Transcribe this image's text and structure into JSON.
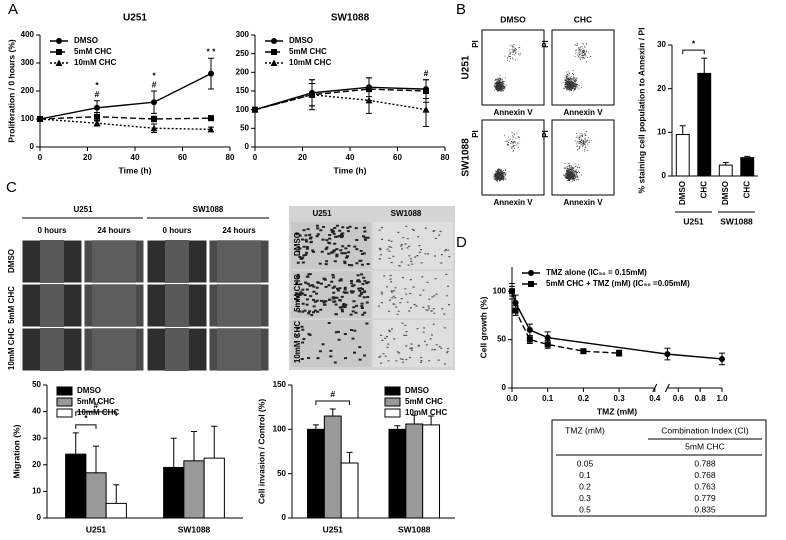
{
  "panel_labels": [
    "A",
    "B",
    "C",
    "D"
  ],
  "chart_data": [
    {
      "type": "line",
      "title": "U251",
      "xlabel": "Time (h)",
      "ylabel": "Proliferation / 0 hours (%)",
      "x": [
        0,
        24,
        48,
        72
      ],
      "xlim": [
        0,
        80
      ],
      "xticks": [
        0,
        20,
        40,
        60,
        80
      ],
      "ylim": [
        0,
        400
      ],
      "yticks": [
        0,
        100,
        200,
        300,
        400
      ],
      "legend": "upper left",
      "series": [
        {
          "name": "DMSO",
          "color": "#000000",
          "line_style": "solid",
          "marker": "circle",
          "values": [
            100,
            140,
            160,
            262
          ],
          "errors": [
            0,
            25,
            40,
            55
          ],
          "point_labels": [
            null,
            "*",
            "*",
            "* *"
          ]
        },
        {
          "name": "5mM CHC",
          "color": "#000000",
          "line_style": "dashed",
          "marker": "square",
          "values": [
            100,
            108,
            100,
            103
          ],
          "errors": [
            0,
            15,
            10,
            8
          ],
          "point_labels": [
            null,
            "#",
            "#",
            null
          ]
        },
        {
          "name": "10mM CHC",
          "color": "#000000",
          "line_style": "dotted",
          "marker": "triangle",
          "values": [
            100,
            85,
            67,
            63
          ],
          "errors": [
            0,
            10,
            15,
            8
          ]
        }
      ]
    },
    {
      "type": "line",
      "title": "SW1088",
      "xlabel": "Time (h)",
      "x": [
        0,
        24,
        48,
        72
      ],
      "xlim": [
        0,
        80
      ],
      "xticks": [
        0,
        20,
        40,
        60,
        80
      ],
      "ylim": [
        0,
        300
      ],
      "yticks": [
        0,
        50,
        100,
        150,
        200,
        250,
        300
      ],
      "legend": "upper left",
      "series": [
        {
          "name": "DMSO",
          "color": "#000000",
          "line_style": "solid",
          "marker": "circle",
          "values": [
            100,
            145,
            160,
            155
          ],
          "errors": [
            0,
            35,
            25,
            25
          ]
        },
        {
          "name": "5mM CHC",
          "color": "#000000",
          "line_style": "dashed",
          "marker": "square",
          "values": [
            100,
            140,
            155,
            150
          ],
          "errors": [
            0,
            30,
            30,
            30
          ],
          "point_labels": [
            null,
            null,
            null,
            "#"
          ]
        },
        {
          "name": "10mM CHC",
          "color": "#000000",
          "line_style": "dotted",
          "marker": "triangle",
          "values": [
            100,
            140,
            125,
            100
          ],
          "errors": [
            0,
            40,
            35,
            45
          ]
        }
      ]
    },
    {
      "type": "bar",
      "ylabel": "% staining cell population to Annexin / PI",
      "categories": [
        "DMSO",
        "CHC",
        "DMSO",
        "CHC"
      ],
      "group_labels": [
        "U251",
        "SW1088"
      ],
      "values": [
        9.5,
        23.5,
        2.5,
        4.2
      ],
      "errors": [
        2,
        3.5,
        0.6,
        0.3
      ],
      "colors": [
        "#ffffff",
        "#000000",
        "#ffffff",
        "#000000"
      ],
      "ylim": [
        0,
        30
      ],
      "yticks": [
        0,
        10,
        20,
        30
      ],
      "annotations": [
        "*"
      ]
    },
    {
      "type": "grouped_bar",
      "ylabel": "Migration (%)",
      "categories": [
        "U251",
        "SW1088"
      ],
      "ylim": [
        0,
        50
      ],
      "yticks": [
        0,
        10,
        20,
        30,
        40,
        50
      ],
      "legend": "upper left",
      "annotations": [
        "*",
        "#"
      ],
      "series": [
        {
          "name": "DMSO",
          "color": "#000000",
          "values": [
            24,
            19
          ],
          "errors": [
            8,
            11
          ]
        },
        {
          "name": "5mM CHC",
          "color": "#999999",
          "values": [
            17,
            21.5
          ],
          "errors": [
            10,
            11
          ]
        },
        {
          "name": "10mM CHC",
          "color": "#ffffff",
          "values": [
            5.5,
            22.5
          ],
          "errors": [
            7,
            12
          ]
        }
      ]
    },
    {
      "type": "grouped_bar",
      "ylabel": "Cell invasion / Control (%)",
      "categories": [
        "U251",
        "SW1088"
      ],
      "ylim": [
        0,
        150
      ],
      "yticks": [
        0,
        50,
        100,
        150
      ],
      "legend": "upper right",
      "annotations": [
        "#"
      ],
      "series": [
        {
          "name": "DMSO",
          "color": "#000000",
          "values": [
            100,
            100
          ],
          "errors": [
            5,
            4
          ]
        },
        {
          "name": "5mM CHC",
          "color": "#999999",
          "values": [
            115,
            106
          ],
          "errors": [
            8,
            10
          ]
        },
        {
          "name": "10mM CHC",
          "color": "#ffffff",
          "values": [
            62,
            105
          ],
          "errors": [
            12,
            10
          ]
        }
      ]
    },
    {
      "type": "line",
      "xlabel": "TMZ (mM)",
      "ylabel": "Cell growth (%)",
      "xlim": [
        0,
        1
      ],
      "xbreak": [
        0.4,
        0.5
      ],
      "xticks": [
        {
          "value": 0,
          "label": "0.0"
        },
        0.1,
        0.2,
        0.3,
        0.4,
        0.6,
        0.8,
        {
          "value": 1,
          "label": "1.0"
        }
      ],
      "ylim": [
        0,
        125
      ],
      "yticks": [
        0,
        50,
        100
      ],
      "legend": "upper left",
      "series": [
        {
          "name": "TMZ alone (IC₅₀ = 0.15mM)",
          "color": "#000000",
          "line_style": "solid",
          "marker": "circle",
          "x": [
            0,
            0.01,
            0.05,
            0.1,
            0.5,
            1
          ],
          "values": [
            100,
            88,
            60,
            52,
            35,
            30
          ],
          "errors": [
            8,
            8,
            6,
            6,
            6,
            6
          ]
        },
        {
          "name": "5mM CHC + TMZ (mM) (IC₅₀ =0.05mM)",
          "color": "#000000",
          "line_style": "dashed",
          "marker": "square",
          "x": [
            0,
            0.01,
            0.05,
            0.1,
            0.2,
            0.3
          ],
          "values": [
            100,
            80,
            50,
            45,
            38,
            36
          ],
          "errors": [
            5,
            5,
            4,
            4,
            2,
            3
          ]
        }
      ]
    }
  ],
  "flow": {
    "columns": [
      "DMSO",
      "CHC"
    ],
    "rows": [
      "U251",
      "SW1088"
    ],
    "y_label": "PI",
    "x_label": "Annexin V"
  },
  "scratch": {
    "cells": [
      "U251",
      "SW1088"
    ],
    "times": [
      "0 hours",
      "24 hours",
      "0 hours",
      "24 hours"
    ],
    "conditions": [
      "DMSO",
      "5mM CHC",
      "10mM CHC"
    ]
  },
  "invasion_images": {
    "cells": [
      "U251",
      "SW1088"
    ],
    "conditions": [
      "DMSO",
      "5mM CHC",
      "10mM CHC"
    ]
  },
  "table": {
    "header": [
      "TMZ (mM)",
      "Combination Index (CI)"
    ],
    "subheader": "5mM CHC",
    "rows": [
      [
        "0.05",
        "0.788"
      ],
      [
        "0.1",
        "0.768"
      ],
      [
        "0.2",
        "0.763"
      ],
      [
        "0.3",
        "0.779"
      ],
      [
        "0.5",
        "0.835"
      ]
    ]
  }
}
